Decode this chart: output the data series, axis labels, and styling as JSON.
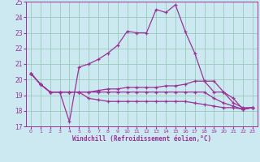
{
  "xlabel": "Windchill (Refroidissement éolien,°C)",
  "xlim": [
    -0.5,
    23.5
  ],
  "ylim": [
    17,
    25
  ],
  "yticks": [
    17,
    18,
    19,
    20,
    21,
    22,
    23,
    24,
    25
  ],
  "xticks": [
    0,
    1,
    2,
    3,
    4,
    5,
    6,
    7,
    8,
    9,
    10,
    11,
    12,
    13,
    14,
    15,
    16,
    17,
    18,
    19,
    20,
    21,
    22,
    23
  ],
  "bg_color": "#cce8f0",
  "grid_color": "#99ccbb",
  "line_color": "#993399",
  "lines": [
    [
      20.4,
      19.7,
      19.2,
      19.2,
      17.3,
      20.8,
      21.0,
      21.3,
      21.7,
      22.2,
      23.1,
      23.0,
      23.0,
      24.5,
      24.3,
      24.8,
      23.1,
      21.7,
      19.9,
      19.9,
      19.2,
      18.8,
      18.1,
      18.2
    ],
    [
      20.4,
      19.7,
      19.2,
      19.2,
      19.2,
      19.2,
      19.2,
      19.3,
      19.4,
      19.4,
      19.5,
      19.5,
      19.5,
      19.5,
      19.6,
      19.6,
      19.7,
      19.9,
      19.9,
      19.2,
      19.2,
      18.5,
      18.2,
      18.2
    ],
    [
      20.4,
      19.7,
      19.2,
      19.2,
      19.2,
      19.2,
      19.2,
      19.2,
      19.2,
      19.2,
      19.2,
      19.2,
      19.2,
      19.2,
      19.2,
      19.2,
      19.2,
      19.2,
      19.2,
      18.8,
      18.5,
      18.3,
      18.1,
      18.2
    ],
    [
      20.4,
      19.7,
      19.2,
      19.2,
      19.2,
      19.2,
      18.8,
      18.7,
      18.6,
      18.6,
      18.6,
      18.6,
      18.6,
      18.6,
      18.6,
      18.6,
      18.6,
      18.5,
      18.4,
      18.3,
      18.2,
      18.2,
      18.1,
      18.2
    ]
  ],
  "marker": "+",
  "markersize": 3,
  "linewidth": 0.9,
  "figsize": [
    3.2,
    2.0
  ],
  "dpi": 100
}
